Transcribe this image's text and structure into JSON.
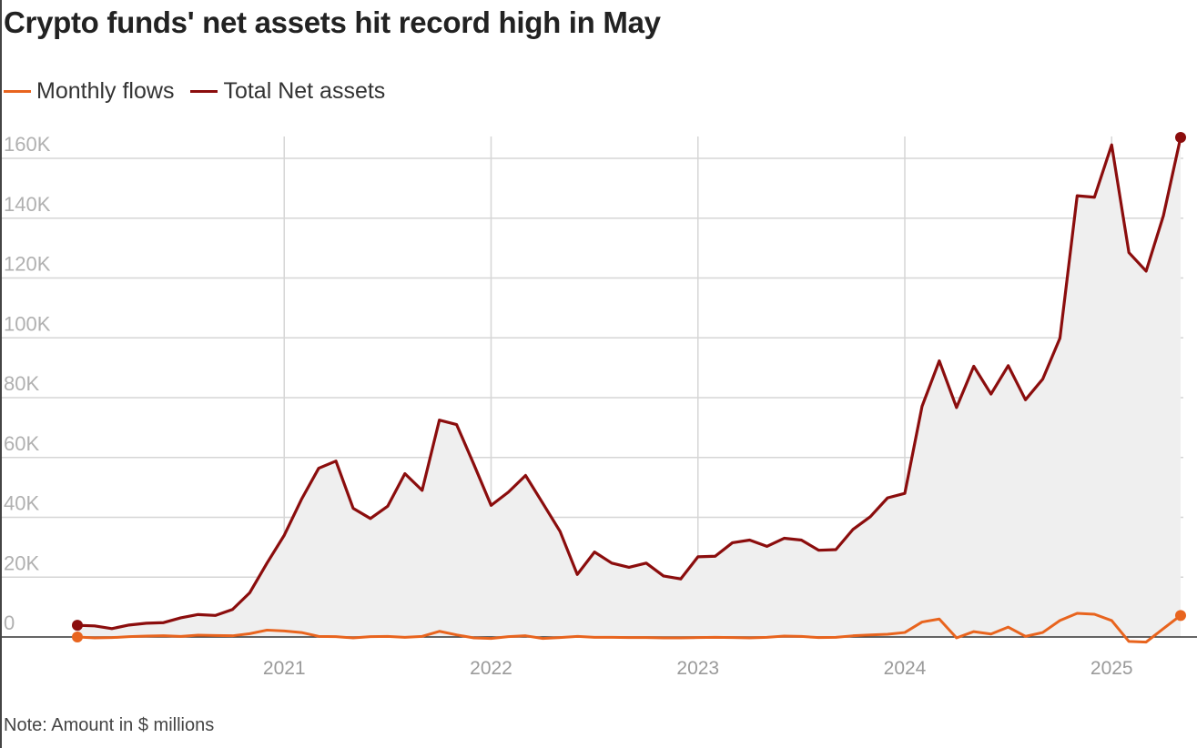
{
  "chart_data": {
    "type": "line",
    "title": "Crypto funds' net assets hit record high in May",
    "note": "Note: Amount in $ millions",
    "legend_position": "top-left",
    "grid": true,
    "ylim": [
      0,
      160000
    ],
    "y_tick_values": [
      0,
      20000,
      40000,
      60000,
      80000,
      100000,
      120000,
      140000,
      160000
    ],
    "y_tick_labels": [
      "0",
      "20K",
      "40K",
      "60K",
      "80K",
      "100K",
      "120K",
      "140K",
      "160K"
    ],
    "x_tick_labels": [
      "2021",
      "2022",
      "2023",
      "2024",
      "2025"
    ],
    "x_start": "2020-01",
    "x_end": "2025-05",
    "series": [
      {
        "name": "Monthly flows",
        "color": "#e8641e",
        "values": [
          0,
          -300,
          -200,
          100,
          300,
          400,
          200,
          600,
          500,
          400,
          1100,
          2300,
          2000,
          1500,
          200,
          100,
          -300,
          100,
          200,
          -100,
          200,
          1900,
          700,
          -300,
          -500,
          100,
          400,
          -500,
          -200,
          200,
          -100,
          -100,
          -200,
          -200,
          -300,
          -300,
          -200,
          -100,
          -200,
          -300,
          -100,
          300,
          200,
          -200,
          -100,
          400,
          700,
          900,
          1500,
          5000,
          6000,
          -300,
          1800,
          1000,
          3300,
          200,
          1500,
          5500,
          7900,
          7600,
          5500,
          -1500,
          -1700,
          2800,
          7200
        ]
      },
      {
        "name": "Total Net assets",
        "color": "#8b0d0d",
        "values": [
          3900,
          3700,
          2800,
          4000,
          4600,
          4800,
          6400,
          7500,
          7200,
          9200,
          14800,
          24700,
          34000,
          46000,
          56400,
          58800,
          43000,
          39600,
          43700,
          54600,
          49000,
          72500,
          71000,
          57700,
          44000,
          48400,
          54000,
          44700,
          35300,
          20900,
          28400,
          24700,
          23300,
          24700,
          20400,
          19400,
          26800,
          27000,
          31500,
          32400,
          30300,
          33000,
          32400,
          29000,
          29200,
          36000,
          40200,
          46500,
          48000,
          77100,
          92300,
          76700,
          90500,
          81200,
          90700,
          79300,
          86200,
          99900,
          147500,
          147000,
          164500,
          128500,
          122300,
          140800,
          167000
        ]
      }
    ]
  }
}
